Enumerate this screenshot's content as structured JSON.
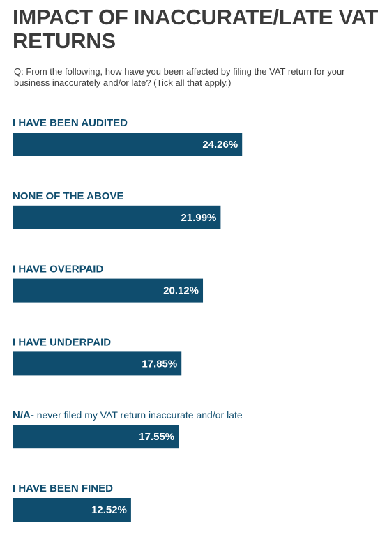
{
  "header": {
    "title": "IMPACT OF INACCURATE/LATE VAT RETURNS",
    "question": "Q:  From the following, how have you been affected by filing the VAT return for your business inaccurately and/or late? (Tick all that apply.)"
  },
  "colors": {
    "bar": "#0f4d6e",
    "label": "#0f4d6e",
    "value_text": "#ffffff"
  },
  "chart_data": {
    "type": "bar",
    "orientation": "horizontal",
    "categories": [
      {
        "bold": "I HAVE BEEN AUDITED",
        "rest": ""
      },
      {
        "bold": "NONE OF THE ABOVE",
        "rest": ""
      },
      {
        "bold": "I HAVE OVERPAID",
        "rest": ""
      },
      {
        "bold": "I HAVE UNDERPAID",
        "rest": ""
      },
      {
        "bold": "N/A-",
        "rest": " never filed my VAT return inaccurate and/or late"
      },
      {
        "bold": "I HAVE BEEN FINED",
        "rest": ""
      }
    ],
    "values": [
      24.26,
      21.99,
      20.12,
      17.85,
      17.55,
      12.52
    ],
    "value_labels": [
      "24.26%",
      "21.99%",
      "20.12%",
      "17.85%",
      "17.55%",
      "12.52%"
    ],
    "unit": "%",
    "grid": false,
    "legend": "none"
  }
}
